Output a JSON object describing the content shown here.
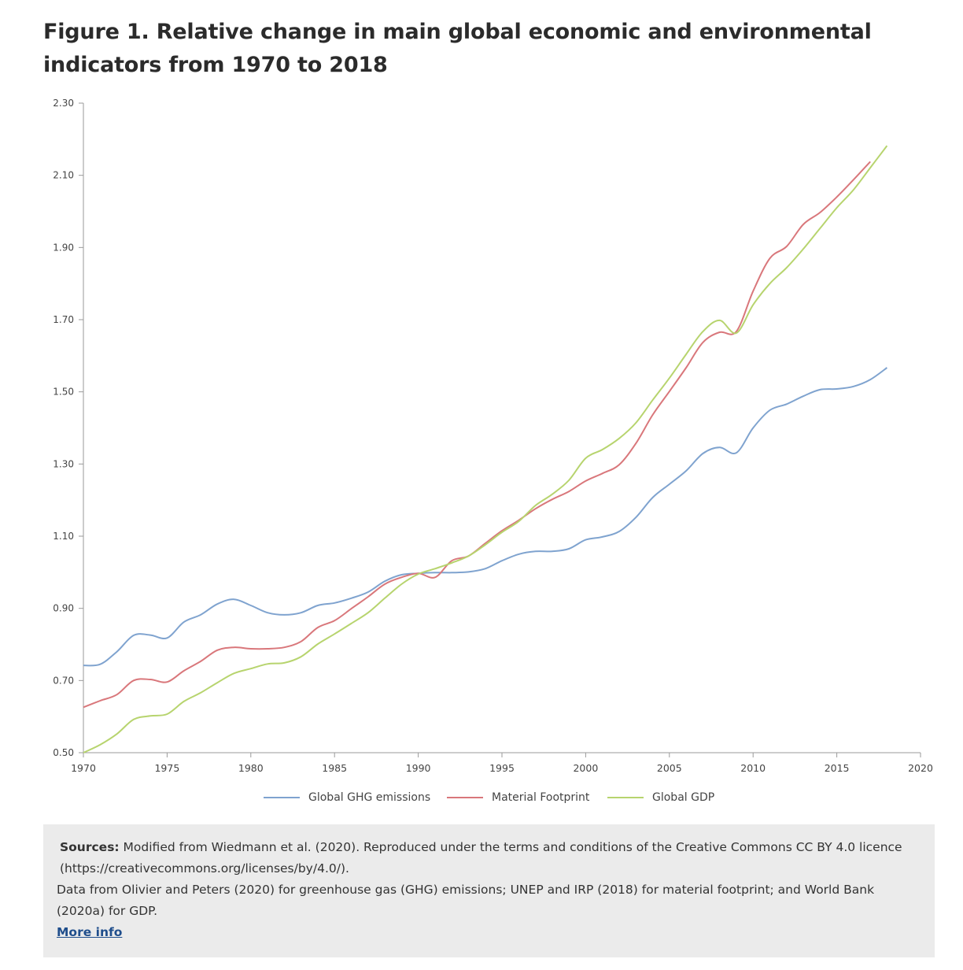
{
  "title": "Figure 1. Relative change in main global economic and environmental indicators from 1970 to 2018",
  "chart_data": {
    "type": "line",
    "title": "Figure 1. Relative change in main global economic and environmental indicators from 1970 to 2018",
    "xlabel": "",
    "ylabel": "",
    "xlim": [
      1970,
      2020
    ],
    "ylim": [
      0.5,
      2.3
    ],
    "x_ticks": [
      "1970",
      "1975",
      "1980",
      "1985",
      "1990",
      "1995",
      "2000",
      "2005",
      "2010",
      "2015",
      "2020"
    ],
    "y_ticks": [
      "0.50",
      "0.70",
      "0.90",
      "1.10",
      "1.30",
      "1.50",
      "1.70",
      "1.90",
      "2.10",
      "2.30"
    ],
    "grid": false,
    "legend_position": "bottom",
    "series": [
      {
        "name": "Global GHG emissions",
        "color": "#7fa3cf",
        "x": [
          1970,
          1971,
          1972,
          1973,
          1974,
          1975,
          1976,
          1977,
          1978,
          1979,
          1980,
          1981,
          1982,
          1983,
          1984,
          1985,
          1986,
          1987,
          1988,
          1989,
          1990,
          1991,
          1992,
          1993,
          1994,
          1995,
          1996,
          1997,
          1998,
          1999,
          2000,
          2001,
          2002,
          2003,
          2004,
          2005,
          2006,
          2007,
          2008,
          2009,
          2010,
          2011,
          2012,
          2013,
          2014,
          2015,
          2016,
          2017,
          2018
        ],
        "values": [
          0.742,
          0.745,
          0.78,
          0.825,
          0.826,
          0.818,
          0.862,
          0.882,
          0.912,
          0.925,
          0.908,
          0.888,
          0.882,
          0.888,
          0.908,
          0.915,
          0.928,
          0.945,
          0.975,
          0.993,
          0.997,
          0.999,
          0.999,
          1.001,
          1.01,
          1.032,
          1.05,
          1.058,
          1.058,
          1.065,
          1.09,
          1.098,
          1.113,
          1.152,
          1.207,
          1.244,
          1.281,
          1.329,
          1.346,
          1.331,
          1.4,
          1.449,
          1.466,
          1.488,
          1.506,
          1.508,
          1.515,
          1.534,
          1.567
        ]
      },
      {
        "name": "Material Footprint",
        "color": "#d9777b",
        "x": [
          1970,
          1971,
          1972,
          1973,
          1974,
          1975,
          1976,
          1977,
          1978,
          1979,
          1980,
          1981,
          1982,
          1983,
          1984,
          1985,
          1986,
          1987,
          1988,
          1989,
          1990,
          1991,
          1992,
          1993,
          1994,
          1995,
          1996,
          1997,
          1998,
          1999,
          2000,
          2001,
          2002,
          2003,
          2004,
          2005,
          2006,
          2007,
          2008,
          2009,
          2010,
          2011,
          2012,
          2013,
          2014,
          2015,
          2016,
          2017
        ],
        "values": [
          0.626,
          0.644,
          0.661,
          0.7,
          0.703,
          0.696,
          0.727,
          0.753,
          0.784,
          0.792,
          0.788,
          0.788,
          0.792,
          0.808,
          0.847,
          0.866,
          0.899,
          0.932,
          0.967,
          0.986,
          0.997,
          0.986,
          1.032,
          1.045,
          1.08,
          1.115,
          1.144,
          1.176,
          1.202,
          1.224,
          1.253,
          1.274,
          1.298,
          1.357,
          1.436,
          1.501,
          1.567,
          1.637,
          1.665,
          1.667,
          1.779,
          1.87,
          1.903,
          1.964,
          1.997,
          2.04,
          2.088,
          2.138
        ]
      },
      {
        "name": "Global GDP",
        "color": "#b7d46e",
        "x": [
          1970,
          1971,
          1972,
          1973,
          1974,
          1975,
          1976,
          1977,
          1978,
          1979,
          1980,
          1981,
          1982,
          1983,
          1984,
          1985,
          1986,
          1987,
          1988,
          1989,
          1990,
          1991,
          1992,
          1993,
          1994,
          1995,
          1996,
          1997,
          1998,
          1999,
          2000,
          2001,
          2002,
          2003,
          2004,
          2005,
          2006,
          2007,
          2008,
          2009,
          2010,
          2011,
          2012,
          2013,
          2014,
          2015,
          2016,
          2017,
          2018
        ],
        "values": [
          0.5,
          0.522,
          0.552,
          0.592,
          0.602,
          0.607,
          0.642,
          0.666,
          0.694,
          0.72,
          0.733,
          0.746,
          0.749,
          0.766,
          0.801,
          0.829,
          0.858,
          0.888,
          0.928,
          0.967,
          0.995,
          1.01,
          1.026,
          1.045,
          1.076,
          1.111,
          1.141,
          1.185,
          1.216,
          1.255,
          1.316,
          1.34,
          1.371,
          1.414,
          1.477,
          1.538,
          1.604,
          1.667,
          1.698,
          1.663,
          1.741,
          1.8,
          1.844,
          1.896,
          1.953,
          2.01,
          2.06,
          2.121,
          2.182
        ]
      }
    ]
  },
  "sources": {
    "label": "Sources:",
    "text1": " Modified from Wiedmann et al. (2020). Reproduced under the terms and conditions of the Creative Commons CC BY 4.0 licence (https://creativecommons.org/licenses/by/4.0/).",
    "text2": "Data from Olivier and Peters (2020) for greenhouse gas (GHG) emissions; UNEP and IRP (2018) for material footprint; and World Bank (2020a) for GDP.",
    "more_info": "More info"
  }
}
